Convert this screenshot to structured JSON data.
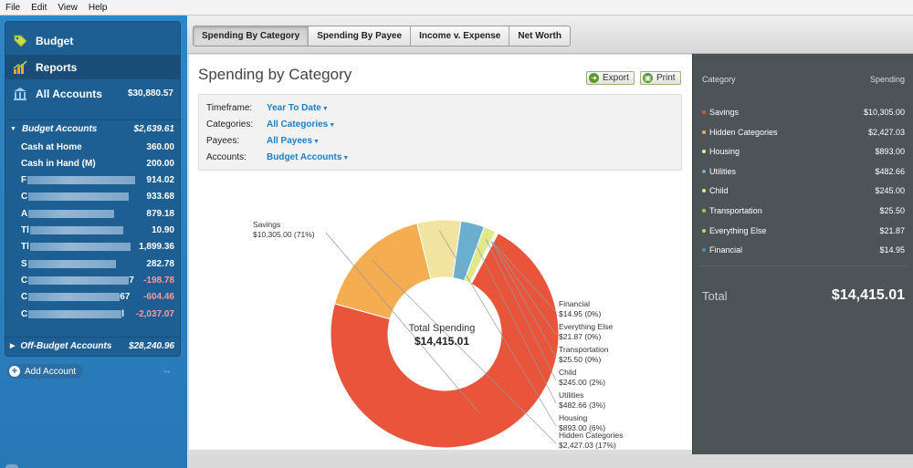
{
  "menu": [
    "File",
    "Edit",
    "View",
    "Help"
  ],
  "sidebar": {
    "nav": [
      {
        "label": "Budget",
        "icon": "tag-icon"
      },
      {
        "label": "Reports",
        "icon": "bar-chart-icon"
      },
      {
        "label": "All Accounts",
        "icon": "bank-icon",
        "amount": "$30,880.57"
      }
    ],
    "budget_accounts": {
      "label": "Budget Accounts",
      "amount": "$2,639.61",
      "items": [
        {
          "name": "Cash at Home",
          "balance": "360.00",
          "negative": false
        },
        {
          "name": "Cash in Hand (M)",
          "balance": "200.00",
          "negative": false
        },
        {
          "name": "F",
          "balance": "914.02",
          "negative": false
        },
        {
          "name": "C",
          "balance": "933.68",
          "negative": false
        },
        {
          "name": "A",
          "balance": "879.18",
          "negative": false
        },
        {
          "name": "Tl",
          "balance": "10.90",
          "negative": false
        },
        {
          "name": "Tl",
          "balance": "1,899.36",
          "negative": false
        },
        {
          "name": "S",
          "balance": "282.78",
          "negative": false
        },
        {
          "name": "C",
          "suffix": "7",
          "balance": "-198.78",
          "negative": true
        },
        {
          "name": "C",
          "suffix": "67",
          "balance": "-604.46",
          "negative": true
        },
        {
          "name": "C",
          "suffix": "l",
          "balance": "-2,037.07",
          "negative": true
        }
      ]
    },
    "off_budget": {
      "label": "Off-Budget Accounts",
      "amount": "$28,240.96"
    },
    "add_account": "Add Account"
  },
  "tabs": [
    "Spending By Category",
    "Spending By Payee",
    "Income v. Expense",
    "Net Worth"
  ],
  "active_tab": 0,
  "report": {
    "title": "Spending by Category",
    "export_label": "Export",
    "print_label": "Print",
    "filters": [
      {
        "label": "Timeframe:",
        "value": "Year To Date"
      },
      {
        "label": "Categories:",
        "value": "All Categories"
      },
      {
        "label": "Payees:",
        "value": "All Payees"
      },
      {
        "label": "Accounts:",
        "value": "Budget Accounts"
      }
    ]
  },
  "chart_data": {
    "type": "pie",
    "center_label": "Total Spending",
    "center_value": "$14,415.01",
    "slices": [
      {
        "name": "Savings",
        "value": 10305.0,
        "amount": "$10,305.00",
        "pct": "71%",
        "color": "#e8553a"
      },
      {
        "name": "Hidden Categories",
        "value": 2427.03,
        "amount": "$2,427.03",
        "pct": "17%",
        "color": "#f5ad52"
      },
      {
        "name": "Housing",
        "value": 893.0,
        "amount": "$893.00",
        "pct": "6%",
        "color": "#f0e4a0"
      },
      {
        "name": "Utilities",
        "value": 482.66,
        "amount": "$482.66",
        "pct": "3%",
        "color": "#6aaed0"
      },
      {
        "name": "Child",
        "value": 245.0,
        "amount": "$245.00",
        "pct": "2%",
        "color": "#dfe98a"
      },
      {
        "name": "Transportation",
        "value": 25.5,
        "amount": "$25.50",
        "pct": "0%",
        "color": "#a7c94a"
      },
      {
        "name": "Everything Else",
        "value": 21.87,
        "amount": "$21.87",
        "pct": "0%",
        "color": "#cfd46a"
      },
      {
        "name": "Financial",
        "value": 14.95,
        "amount": "$14.95",
        "pct": "0%",
        "color": "#3f8fcf"
      }
    ]
  },
  "summary": {
    "header_category": "Category",
    "header_spending": "Spending",
    "rows": [
      {
        "name": "Savings",
        "amount": "$10,305.00",
        "color": "#e8553a"
      },
      {
        "name": "Hidden Categories",
        "amount": "$2,427.03",
        "color": "#f5ad52"
      },
      {
        "name": "Housing",
        "amount": "$893.00",
        "color": "#f0e4a0"
      },
      {
        "name": "Utilities",
        "amount": "$482.66",
        "color": "#6aaed0"
      },
      {
        "name": "Child",
        "amount": "$245.00",
        "color": "#dfe98a"
      },
      {
        "name": "Transportation",
        "amount": "$25.50",
        "color": "#a7c94a"
      },
      {
        "name": "Everything Else",
        "amount": "$21.87",
        "color": "#cfd46a"
      },
      {
        "name": "Financial",
        "amount": "$14.95",
        "color": "#3f8fcf"
      }
    ],
    "total_label": "Total",
    "total_amount": "$14,415.01"
  }
}
